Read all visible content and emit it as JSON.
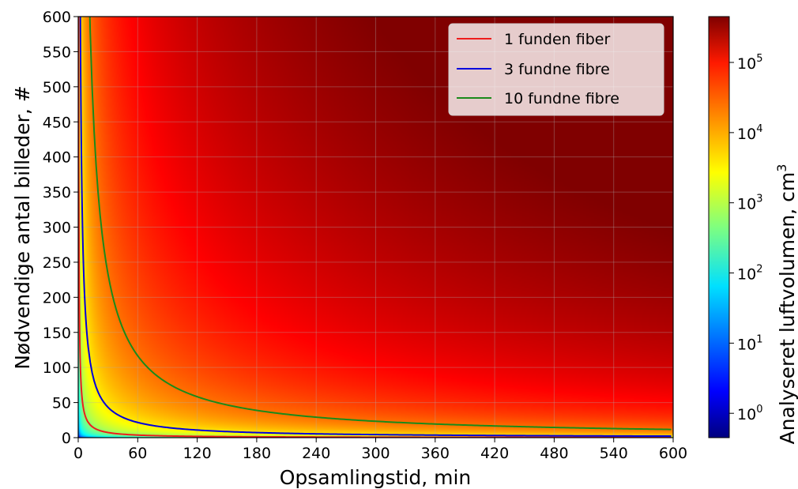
{
  "chart_data": {
    "type": "heatmap",
    "title": "",
    "xlabel": "Opsamlingstid, min",
    "ylabel": "Nødvendige antal billeder, #",
    "colorbar_label": "Analyseret luftvolumen, cm",
    "colorbar_label_superscript": "3",
    "xlim": [
      0,
      600
    ],
    "ylim": [
      0,
      600
    ],
    "x_ticks": [
      "0",
      "60",
      "120",
      "180",
      "240",
      "300",
      "360",
      "420",
      "480",
      "540",
      "600"
    ],
    "y_ticks": [
      "0",
      "50",
      "100",
      "150",
      "200",
      "250",
      "300",
      "350",
      "400",
      "450",
      "500",
      "550",
      "600"
    ],
    "colorbar_scale": "log",
    "colorbar_range": [
      0.45,
      450000
    ],
    "colorbar_ticks": [
      {
        "base": "10",
        "exp": "0",
        "value": 1
      },
      {
        "base": "10",
        "exp": "1",
        "value": 10
      },
      {
        "base": "10",
        "exp": "2",
        "value": 100
      },
      {
        "base": "10",
        "exp": "3",
        "value": 1000
      },
      {
        "base": "10",
        "exp": "4",
        "value": 10000
      },
      {
        "base": "10",
        "exp": "5",
        "value": 100000
      }
    ],
    "colormap": "jet",
    "grid": true,
    "legend_position": "top-right",
    "series": [
      {
        "name": "1 funden fiber",
        "color": "#ee1c1c",
        "k": 220
      },
      {
        "name": "3 fundne fibre",
        "color": "#0000dd",
        "k": 1300
      },
      {
        "name": "10 fundne fibre",
        "color": "#1a8a1a",
        "k": 7000
      }
    ]
  }
}
